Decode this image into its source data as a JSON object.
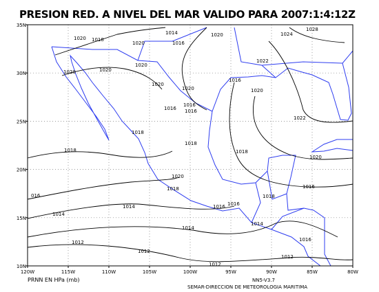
{
  "title": "PRESION RED. A NIVEL DEL MAR VALIDO PARA 2007:1:4:12Z",
  "x_labels": [
    "120W",
    "115W",
    "110W",
    "105W",
    "100W",
    "95W",
    "90W",
    "85W",
    "80W"
  ],
  "y_labels": [
    "35N",
    "30N",
    "25N",
    "20N",
    "15N",
    "10N"
  ],
  "contour_labels": [
    "1020",
    "1018",
    "1020",
    "1014",
    "1016",
    "1020",
    "1024",
    "1028",
    "1020",
    "1020",
    "1020",
    "1022",
    "1016",
    "1020",
    "1020",
    "1020",
    "1016",
    "1016",
    "1016",
    "1022",
    "1018",
    "1018",
    "1018",
    "1018",
    "1020",
    "1020",
    "1018",
    "1016",
    "1018",
    "016",
    "1016",
    "1016",
    "1014",
    "1014",
    "1014",
    "1014",
    "1016",
    "1012",
    "1012",
    "1012",
    "1012"
  ],
  "footer": {
    "units": "PRNN EN HPa (mb)",
    "version": "NN5-V3.7",
    "agency": "SEMAR-DIRECCION DE METEOROLOGIA MARITIMA"
  }
}
